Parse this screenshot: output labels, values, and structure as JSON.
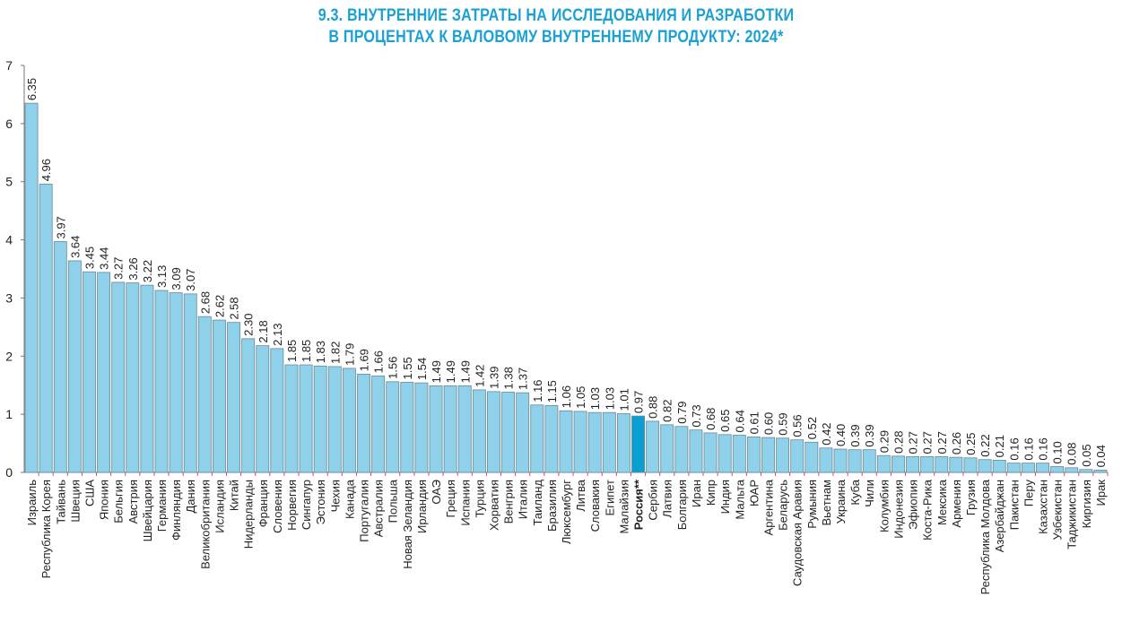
{
  "chart_data": {
    "type": "bar",
    "title_line1": "9.3. ВНУТРЕННИЕ ЗАТРАТЫ НА ИССЛЕДОВАНИЯ И РАЗРАБОТКИ",
    "title_line2": "В ПРОЦЕНТАХ К ВАЛОВОМУ ВНУТРЕННЕМУ ПРОДУКТУ: 2024*",
    "ylim": [
      0,
      7
    ],
    "yticks": [
      0,
      1,
      2,
      3,
      4,
      5,
      6,
      7
    ],
    "grid": false,
    "colors": {
      "bar": "#8fd1ea",
      "highlight": "#0a9fd2",
      "border": "#6a8a96",
      "title": "#1ba1d2"
    },
    "highlight_category": "Россия**",
    "categories": [
      "Израиль",
      "Республика Корея",
      "Тайвань",
      "Швеция",
      "США",
      "Япония",
      "Бельгия",
      "Австрия",
      "Швейцария",
      "Германия",
      "Финляндия",
      "Дания",
      "Великобритания",
      "Исландия",
      "Китай",
      "Нидерланды",
      "Франция",
      "Словения",
      "Норвегия",
      "Сингапур",
      "Эстония",
      "Чехия",
      "Канада",
      "Португалия",
      "Австралия",
      "Польша",
      "Новая Зеландия",
      "Ирландия",
      "ОАЭ",
      "Греция",
      "Испания",
      "Турция",
      "Хорватия",
      "Венгрия",
      "Италия",
      "Таиланд",
      "Бразилия",
      "Люксембург",
      "Литва",
      "Словакия",
      "Египет",
      "Малайзия",
      "Россия**",
      "Сербия",
      "Латвия",
      "Болгария",
      "Иран",
      "Кипр",
      "Индия",
      "Мальта",
      "ЮАР",
      "Аргентина",
      "Беларусь",
      "Саудовская Аравия",
      "Румыния",
      "Вьетнам",
      "Украина",
      "Куба",
      "Чили",
      "Колумбия",
      "Индонезия",
      "Эфиопия",
      "Коста-Рика",
      "Мексика",
      "Армения",
      "Грузия",
      "Республика Молдова",
      "Азербайджан",
      "Пакистан",
      "Перу",
      "Казахстан",
      "Узбекистан",
      "Таджикистан",
      "Киргизия",
      "Ирак"
    ],
    "values": [
      6.35,
      4.96,
      3.97,
      3.64,
      3.45,
      3.44,
      3.27,
      3.26,
      3.22,
      3.13,
      3.09,
      3.07,
      2.68,
      2.62,
      2.58,
      2.3,
      2.18,
      2.13,
      1.85,
      1.85,
      1.83,
      1.82,
      1.79,
      1.69,
      1.66,
      1.56,
      1.55,
      1.54,
      1.49,
      1.49,
      1.49,
      1.42,
      1.39,
      1.38,
      1.37,
      1.16,
      1.15,
      1.06,
      1.05,
      1.03,
      1.03,
      1.01,
      0.97,
      0.88,
      0.82,
      0.79,
      0.73,
      0.68,
      0.65,
      0.64,
      0.61,
      0.6,
      0.59,
      0.56,
      0.52,
      0.42,
      0.4,
      0.39,
      0.39,
      0.29,
      0.28,
      0.27,
      0.27,
      0.27,
      0.26,
      0.25,
      0.22,
      0.21,
      0.16,
      0.16,
      0.16,
      0.1,
      0.08,
      0.05,
      0.04
    ]
  }
}
